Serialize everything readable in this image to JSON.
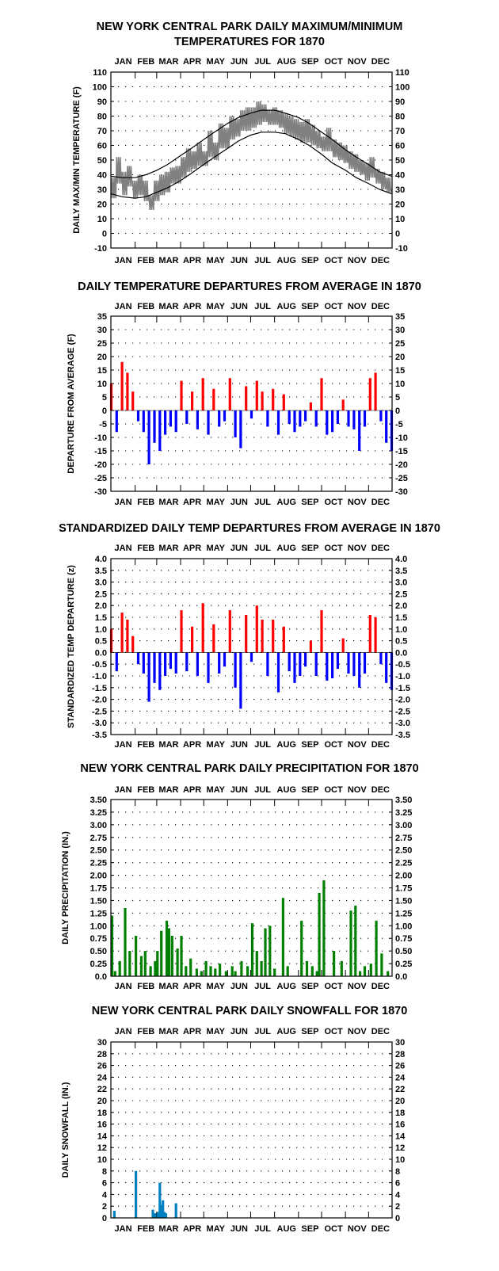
{
  "months": [
    "JAN",
    "FEB",
    "MAR",
    "APR",
    "MAY",
    "JUN",
    "JUL",
    "AUG",
    "SEP",
    "OCT",
    "NOV",
    "DEC"
  ],
  "colors": {
    "actual_temp": "#808080",
    "normal_lines": "#000000",
    "warm": "#ff0000",
    "cold": "#0000ff",
    "precip": "#008000",
    "snow": "#0080c0"
  },
  "chart_data": [
    {
      "id": "temps",
      "type": "line",
      "title": [
        "NEW YORK CENTRAL PARK DAILY MAXIMUM/MINIMUM",
        "TEMPERATURES FOR 1870"
      ],
      "ylabel": "DAILY MAX/MIN TEMPERATURE (F)",
      "ylim": [
        -10,
        110
      ],
      "yticks": [
        -10,
        0,
        10,
        20,
        30,
        40,
        50,
        60,
        70,
        80,
        90,
        100,
        110
      ],
      "ytick_labels": [
        "-10",
        "0",
        "10",
        "20",
        "30",
        "40",
        "50",
        "60",
        "70",
        "80",
        "90",
        "100",
        "110"
      ],
      "x_unit": "day of year",
      "grid": true,
      "series": [
        {
          "kind": "daily_range",
          "color": "#808080",
          "x": [
            1,
            8,
            15,
            22,
            29,
            36,
            43,
            50,
            57,
            64,
            71,
            78,
            85,
            92,
            99,
            106,
            113,
            120,
            127,
            134,
            141,
            148,
            155,
            162,
            169,
            176,
            183,
            190,
            197,
            204,
            211,
            218,
            225,
            232,
            239,
            246,
            253,
            260,
            267,
            274,
            281,
            288,
            295,
            302,
            309,
            316,
            323,
            330,
            337,
            344,
            351,
            358,
            365
          ],
          "high": [
            38,
            52,
            42,
            46,
            36,
            40,
            36,
            26,
            36,
            40,
            42,
            45,
            46,
            52,
            58,
            56,
            62,
            56,
            70,
            62,
            75,
            72,
            80,
            78,
            84,
            86,
            86,
            90,
            88,
            84,
            86,
            84,
            82,
            80,
            78,
            76,
            78,
            74,
            70,
            66,
            72,
            64,
            62,
            60,
            56,
            54,
            50,
            48,
            52,
            44,
            42,
            38,
            30
          ],
          "low": [
            20,
            30,
            22,
            28,
            20,
            22,
            18,
            12,
            18,
            22,
            24,
            30,
            30,
            34,
            38,
            40,
            42,
            42,
            48,
            46,
            54,
            54,
            60,
            62,
            66,
            66,
            68,
            70,
            72,
            70,
            70,
            68,
            64,
            62,
            60,
            58,
            58,
            56,
            54,
            52,
            52,
            48,
            46,
            44,
            40,
            38,
            36,
            32,
            34,
            30,
            26,
            24,
            16
          ]
        },
        {
          "kind": "line",
          "name": "normal high",
          "color": "#000000",
          "x": [
            1,
            15,
            32,
            46,
            60,
            74,
            91,
            105,
            121,
            135,
            152,
            166,
            182,
            196,
            213,
            227,
            244,
            258,
            274,
            288,
            305,
            319,
            335,
            349,
            365
          ],
          "y": [
            39,
            38,
            38,
            40,
            43,
            47,
            53,
            58,
            64,
            69,
            75,
            79,
            82,
            84,
            84,
            82,
            79,
            75,
            69,
            64,
            57,
            52,
            47,
            42,
            39
          ]
        },
        {
          "kind": "line",
          "name": "normal low",
          "color": "#000000",
          "x": [
            1,
            15,
            32,
            46,
            60,
            74,
            91,
            105,
            121,
            135,
            152,
            166,
            182,
            196,
            213,
            227,
            244,
            258,
            274,
            288,
            305,
            319,
            335,
            349,
            365
          ],
          "y": [
            27,
            25,
            24,
            25,
            28,
            31,
            36,
            41,
            47,
            52,
            58,
            63,
            67,
            69,
            69,
            68,
            64,
            60,
            54,
            48,
            43,
            38,
            34,
            30,
            27
          ]
        }
      ]
    },
    {
      "id": "dep",
      "type": "bar",
      "title": [
        "DAILY TEMPERATURE DEPARTURES FROM AVERAGE IN 1870"
      ],
      "ylabel": "DEPARTURE FROM AVERAGE (F)",
      "ylim": [
        -30,
        35
      ],
      "yticks": [
        -30,
        -25,
        -20,
        -15,
        -10,
        -5,
        0,
        5,
        10,
        15,
        20,
        25,
        30,
        35
      ],
      "ytick_labels": [
        "-30",
        "-25",
        "-20",
        "-15",
        "-10",
        "-5",
        "0",
        "5",
        "10",
        "15",
        "20",
        "25",
        "30",
        "35"
      ],
      "x_unit": "day of year",
      "grid": true,
      "colors": {
        "positive": "#ff0000",
        "negative": "#0000ff"
      },
      "x": [
        1,
        8,
        15,
        22,
        29,
        36,
        43,
        50,
        57,
        64,
        71,
        78,
        85,
        92,
        99,
        106,
        113,
        120,
        127,
        134,
        141,
        148,
        155,
        162,
        169,
        176,
        183,
        190,
        197,
        204,
        211,
        218,
        225,
        232,
        239,
        246,
        253,
        260,
        267,
        274,
        281,
        288,
        295,
        302,
        309,
        316,
        323,
        330,
        337,
        344,
        351,
        358,
        365
      ],
      "values": [
        10,
        -8,
        18,
        14,
        7,
        -4,
        -8,
        -20,
        -12,
        -15,
        -9,
        -6,
        -8,
        11,
        -5,
        7,
        -7,
        12,
        -9,
        8,
        -6,
        -4,
        12,
        -10,
        -14,
        9,
        -3,
        11,
        7,
        -6,
        8,
        -9,
        6,
        -5,
        -8,
        -6,
        -4,
        3,
        -6,
        12,
        -9,
        -8,
        -5,
        4,
        -6,
        -7,
        -15,
        -6,
        12,
        14,
        -4,
        -12,
        -15
      ]
    },
    {
      "id": "std",
      "type": "bar",
      "title": [
        "STANDARDIZED DAILY TEMP DEPARTURES FROM AVERAGE IN 1870"
      ],
      "ylabel": "STANDARDIZED TEMP DEPARTURE (z)",
      "ylim": [
        -3.5,
        4.0
      ],
      "yticks": [
        -3.5,
        -3.0,
        -2.5,
        -2.0,
        -1.5,
        -1.0,
        -0.5,
        0.0,
        0.5,
        1.0,
        1.5,
        2.0,
        2.5,
        3.0,
        3.5,
        4.0
      ],
      "ytick_labels": [
        "-3.5",
        "-3.0",
        "-2.5",
        "-2.0",
        "-1.5",
        "-1.0",
        "-0.5",
        "0.0",
        "0.5",
        "1.0",
        "1.5",
        "2.0",
        "2.5",
        "3.0",
        "3.5",
        "4.0"
      ],
      "x_unit": "day of year",
      "grid": true,
      "colors": {
        "positive": "#ff0000",
        "negative": "#0000ff"
      },
      "x": [
        1,
        8,
        15,
        22,
        29,
        36,
        43,
        50,
        57,
        64,
        71,
        78,
        85,
        92,
        99,
        106,
        113,
        120,
        127,
        134,
        141,
        148,
        155,
        162,
        169,
        176,
        183,
        190,
        197,
        204,
        211,
        218,
        225,
        232,
        239,
        246,
        253,
        260,
        267,
        274,
        281,
        288,
        295,
        302,
        309,
        316,
        323,
        330,
        337,
        344,
        351,
        358,
        365
      ],
      "values": [
        1.0,
        -0.8,
        1.7,
        1.4,
        0.7,
        -0.5,
        -0.9,
        -2.1,
        -1.3,
        -1.6,
        -1.0,
        -0.7,
        -0.9,
        1.8,
        -0.8,
        1.1,
        -1.0,
        2.1,
        -1.3,
        1.2,
        -0.9,
        -0.6,
        1.8,
        -1.5,
        -2.4,
        1.6,
        -0.4,
        2.0,
        1.4,
        -1.0,
        1.4,
        -1.7,
        1.1,
        -0.8,
        -1.3,
        -1.0,
        -0.6,
        0.5,
        -1.0,
        1.8,
        -1.2,
        -1.1,
        -0.7,
        0.6,
        -0.9,
        -1.0,
        -1.5,
        -0.9,
        1.6,
        1.5,
        -0.5,
        -1.3,
        -1.6
      ]
    },
    {
      "id": "precip",
      "type": "bar",
      "title": [
        "NEW YORK CENTRAL PARK DAILY PRECIPITATION FOR 1870"
      ],
      "ylabel": "DAILY PRECIPITATION (IN.)",
      "ylim": [
        0,
        3.5
      ],
      "yticks": [
        0,
        0.25,
        0.5,
        0.75,
        1.0,
        1.25,
        1.5,
        1.75,
        2.0,
        2.25,
        2.5,
        2.75,
        3.0,
        3.25,
        3.5
      ],
      "ytick_labels": [
        "0.0",
        "0.25",
        "0.50",
        "0.75",
        "1.00",
        "1.25",
        "1.50",
        "1.75",
        "2.00",
        "2.25",
        "2.50",
        "2.75",
        "3.00",
        "3.25",
        "3.50"
      ],
      "x_unit": "day of year",
      "grid": true,
      "color": "#008000",
      "x": [
        2,
        6,
        12,
        19,
        25,
        33,
        40,
        45,
        52,
        58,
        61,
        66,
        73,
        76,
        80,
        87,
        92,
        98,
        104,
        112,
        118,
        124,
        130,
        136,
        142,
        150,
        158,
        162,
        170,
        178,
        184,
        190,
        196,
        201,
        207,
        213,
        224,
        230,
        248,
        255,
        262,
        268,
        271,
        277,
        290,
        300,
        312,
        318,
        324,
        330,
        338,
        345,
        352,
        360
      ],
      "values": [
        1.2,
        0.1,
        0.3,
        1.35,
        0.5,
        0.8,
        0.4,
        0.5,
        0.2,
        0.3,
        0.5,
        0.9,
        1.1,
        0.95,
        0.8,
        0.55,
        0.8,
        0.2,
        0.35,
        0.15,
        0.1,
        0.3,
        0.2,
        0.15,
        0.25,
        0.1,
        0.2,
        0.1,
        0.3,
        0.2,
        1.05,
        0.5,
        0.3,
        0.95,
        1.0,
        0.15,
        1.55,
        0.2,
        1.1,
        0.3,
        0.2,
        0.1,
        1.65,
        1.9,
        0.5,
        0.3,
        1.3,
        1.4,
        0.1,
        0.2,
        0.25,
        1.1,
        0.45,
        0.1
      ]
    },
    {
      "id": "snow",
      "type": "bar",
      "title": [
        "NEW YORK CENTRAL PARK DAILY SNOWFALL FOR 1870"
      ],
      "ylabel": "DAILY SNOWFALL (IN.)",
      "ylim": [
        0,
        30
      ],
      "yticks": [
        0,
        2,
        4,
        6,
        8,
        10,
        12,
        14,
        16,
        18,
        20,
        22,
        24,
        26,
        28,
        30
      ],
      "ytick_labels": [
        "0",
        "2",
        "4",
        "6",
        "8",
        "10",
        "12",
        "14",
        "16",
        "18",
        "20",
        "22",
        "24",
        "26",
        "28",
        "30"
      ],
      "x_unit": "day of year",
      "grid": true,
      "color": "#0080c0",
      "x": [
        5,
        33,
        55,
        58,
        62,
        64,
        66,
        68,
        70,
        72,
        85
      ],
      "values": [
        1.2,
        8.0,
        1.4,
        0.8,
        1.0,
        6.0,
        2.2,
        3.0,
        1.0,
        0.8,
        2.5
      ]
    }
  ]
}
